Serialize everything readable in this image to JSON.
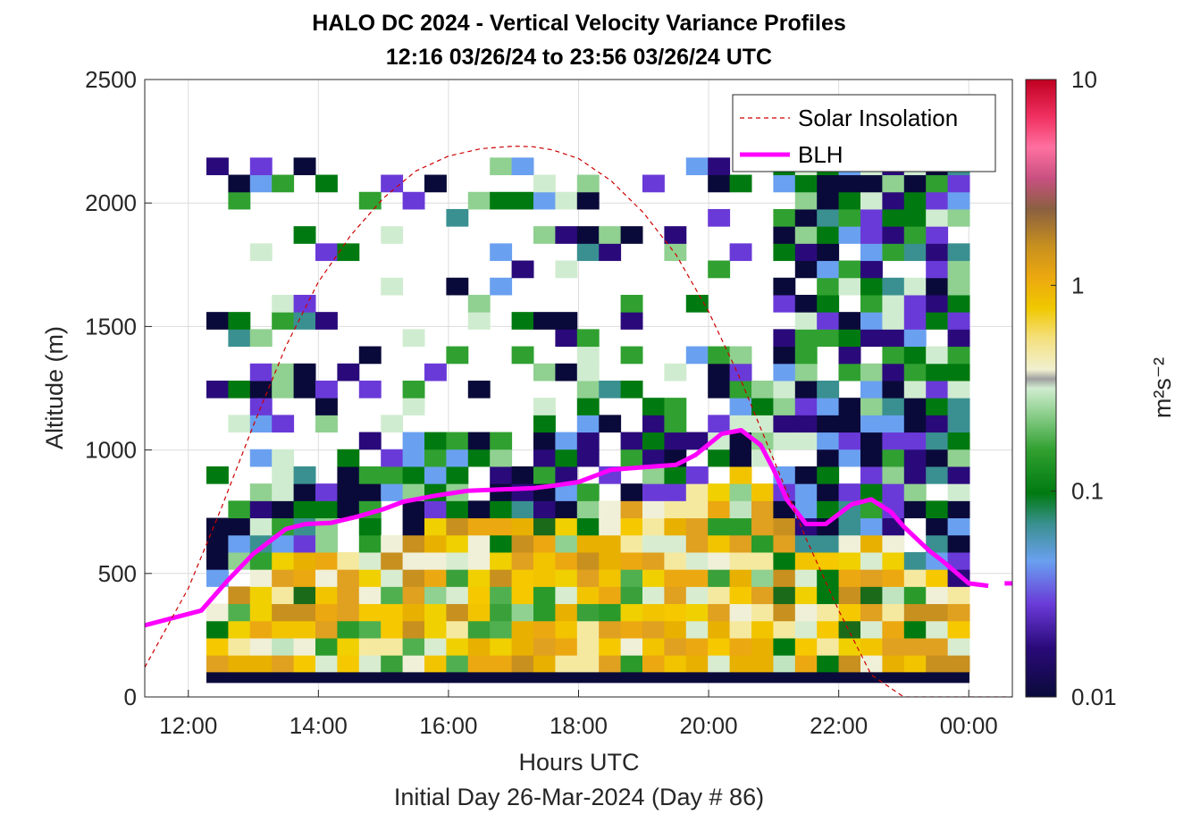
{
  "chart_data": {
    "type": "heatmap",
    "title": "HALO DC 2024 - Vertical Velocity Variance Profiles",
    "subtitle": "12:16 03/26/24 to 23:56 03/26/24  UTC",
    "xlabel": "Hours UTC",
    "xlabel2": "Initial Day 26-Mar-2024 (Day # 86)",
    "ylabel": "Altitude (m)",
    "xlim": [
      11.33,
      24.67
    ],
    "ylim": [
      0,
      2500
    ],
    "x_ticks": [
      12,
      14,
      16,
      18,
      20,
      22,
      24
    ],
    "x_tick_labels": [
      "12:00",
      "14:00",
      "16:00",
      "18:00",
      "20:00",
      "22:00",
      "00:00"
    ],
    "y_ticks": [
      0,
      500,
      1000,
      1500,
      2000,
      2500
    ],
    "y_tick_labels": [
      "0",
      "500",
      "1000",
      "1500",
      "2000",
      "2500"
    ],
    "grid": true,
    "colorbar": {
      "label": "m²s⁻²",
      "scale": "log",
      "range": [
        0.01,
        10
      ],
      "ticks": [
        0.01,
        0.1,
        1,
        10
      ],
      "tick_labels": [
        "0.01",
        "0.1",
        "1",
        "10"
      ]
    },
    "legend": {
      "placement": "top-right",
      "entries": [
        {
          "label": "Solar Insolation",
          "color": "#cc0000",
          "style": "dashed"
        },
        {
          "label": "BLH",
          "color": "#ff00ff",
          "style": "solid"
        }
      ]
    },
    "series": [
      {
        "name": "BLH",
        "x": [
          11.33,
          12.2,
          12.6,
          13.0,
          13.5,
          13.8,
          14.2,
          14.6,
          15.0,
          15.3,
          15.8,
          16.3,
          16.8,
          17.3,
          17.6,
          18.0,
          18.5,
          19.0,
          19.5,
          19.8,
          20.2,
          20.5,
          20.8,
          21.0,
          21.2,
          21.5,
          21.8,
          22.2,
          22.5,
          22.8,
          23.0,
          23.4,
          23.6,
          24.0,
          24.3
        ],
        "y": [
          290,
          350,
          470,
          580,
          680,
          700,
          705,
          730,
          760,
          790,
          815,
          835,
          840,
          845,
          855,
          870,
          920,
          930,
          940,
          980,
          1065,
          1080,
          1020,
          920,
          800,
          700,
          700,
          780,
          800,
          750,
          690,
          590,
          550,
          460,
          450
        ]
      },
      {
        "name": "BLH",
        "x": [
          24.55,
          24.67
        ],
        "y": [
          460,
          460
        ]
      },
      {
        "name": "Solar Insolation",
        "x": [
          11.33,
          12.0,
          12.5,
          13.0,
          13.5,
          14.0,
          14.5,
          15.0,
          15.5,
          16.0,
          16.5,
          17.0,
          17.3,
          17.6,
          18.0,
          18.5,
          19.0,
          19.5,
          20.0,
          20.5,
          21.0,
          21.5,
          22.0,
          22.5,
          23.0,
          23.3,
          23.6,
          24.67
        ],
        "y": [
          120,
          440,
          760,
          1100,
          1420,
          1680,
          1870,
          2020,
          2130,
          2190,
          2220,
          2230,
          2228,
          2215,
          2180,
          2090,
          1960,
          1790,
          1560,
          1280,
          960,
          640,
          350,
          90,
          0,
          0,
          0,
          0
        ]
      }
    ]
  }
}
